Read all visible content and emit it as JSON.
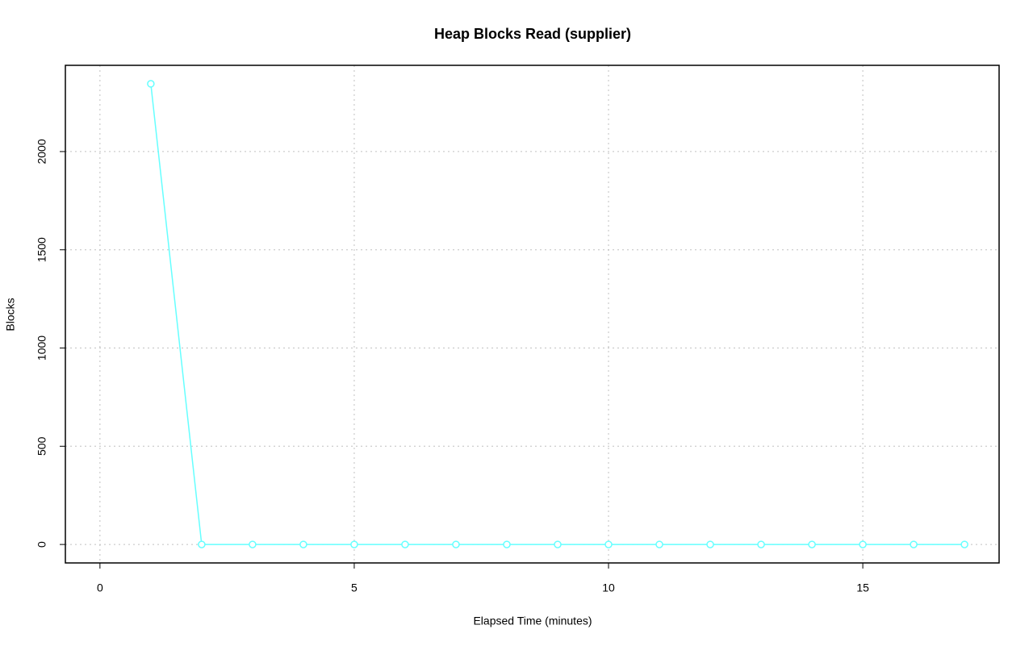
{
  "chart_data": {
    "type": "line",
    "title": "Heap Blocks Read (supplier)",
    "x_label": "Elapsed Time (minutes)",
    "y_label": "Blocks",
    "x": [
      1,
      2,
      3,
      4,
      5,
      6,
      7,
      8,
      9,
      10,
      11,
      12,
      13,
      14,
      15,
      16,
      17
    ],
    "series": [
      {
        "name": "supplier",
        "color": "#66ffff",
        "values": [
          2345,
          0,
          0,
          0,
          0,
          0,
          0,
          0,
          0,
          0,
          0,
          0,
          0,
          0,
          0,
          0,
          0
        ]
      }
    ],
    "xlim": [
      -0.68,
      17.68
    ],
    "ylim": [
      -94,
      2439
    ],
    "xticks": [
      0,
      5,
      10,
      15
    ],
    "yticks": [
      0,
      500,
      1000,
      1500,
      2000
    ],
    "grid": true
  }
}
